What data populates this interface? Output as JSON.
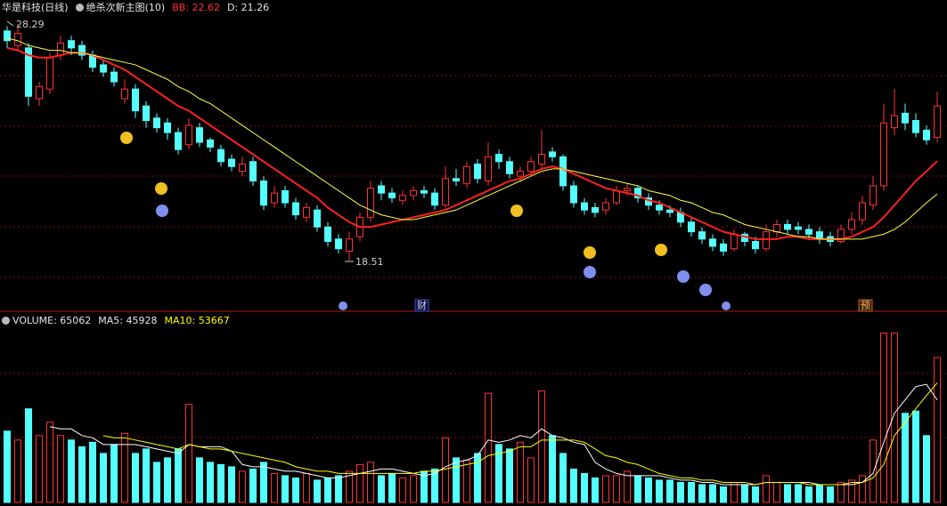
{
  "chart_data": [
    {
      "type": "candlestick",
      "title": "华是科技(日线)",
      "subtitle": "绝杀次新主图(10)",
      "up_color": "#ff3232",
      "down_color": "#54ffff",
      "ylim": [
        16.6,
        29.28
      ],
      "annotations": [
        "财",
        "预"
      ],
      "open": [
        28.0,
        27.4,
        27.3,
        25.2,
        25.6,
        27.0,
        27.6,
        27.4,
        27.0,
        26.6,
        26.3,
        25.2,
        25.6,
        24.9,
        24.4,
        24.2,
        23.8,
        23.3,
        24.0,
        23.5,
        23.1,
        22.7,
        22.2,
        22.6,
        21.8,
        20.9,
        21.4,
        20.9,
        20.3,
        20.6,
        19.9,
        19.4,
        18.9,
        19.5,
        20.3,
        21.6,
        21.3,
        21.0,
        21.2,
        21.4,
        21.3,
        20.8,
        21.9,
        21.7,
        22.5,
        21.8,
        22.9,
        22.6,
        22.0,
        22.2,
        22.5,
        23.0,
        22.8,
        21.6,
        20.9,
        20.7,
        20.6,
        20.9,
        21.4,
        21.5,
        21.1,
        20.8,
        20.6,
        20.5,
        20.1,
        19.7,
        19.4,
        19.2,
        19.0,
        19.6,
        19.3,
        19.0,
        19.7,
        20.0,
        19.9,
        19.8,
        19.7,
        19.5,
        19.3,
        19.8,
        20.2,
        20.8,
        21.6,
        24.0,
        24.6,
        24.3,
        23.9,
        23.6
      ],
      "high": [
        28.2,
        28.29,
        27.5,
        25.9,
        27.1,
        27.8,
        27.8,
        27.6,
        27.2,
        26.8,
        26.5,
        26.0,
        25.8,
        25.1,
        24.6,
        24.4,
        24.0,
        24.4,
        24.2,
        23.6,
        23.3,
        22.9,
        22.8,
        22.8,
        22.0,
        21.6,
        21.6,
        21.1,
        20.9,
        20.8,
        20.1,
        19.6,
        19.7,
        20.5,
        21.8,
        21.8,
        21.5,
        21.4,
        21.6,
        21.6,
        21.5,
        22.4,
        22.3,
        22.6,
        22.7,
        23.4,
        23.1,
        22.8,
        22.4,
        22.8,
        23.9,
        23.2,
        22.9,
        21.8,
        21.1,
        20.9,
        21.1,
        21.6,
        21.7,
        21.6,
        21.3,
        21.0,
        20.8,
        20.7,
        20.3,
        19.9,
        19.6,
        19.4,
        19.8,
        19.7,
        19.5,
        20.0,
        20.2,
        20.2,
        20.1,
        20.0,
        19.9,
        19.7,
        20.0,
        20.5,
        21.2,
        22.0,
        25.0,
        25.6,
        25.0,
        24.6,
        24.1,
        25.5
      ],
      "low": [
        27.3,
        27.2,
        24.9,
        24.9,
        25.4,
        26.8,
        27.0,
        26.8,
        26.3,
        26.1,
        25.7,
        25.0,
        24.4,
        24.0,
        23.8,
        23.5,
        22.9,
        23.1,
        23.2,
        23.0,
        22.4,
        22.2,
        22.0,
        21.6,
        20.6,
        20.7,
        20.7,
        20.2,
        20.1,
        19.7,
        19.1,
        18.8,
        18.51,
        19.3,
        20.1,
        21.0,
        20.9,
        20.8,
        21.0,
        21.1,
        20.6,
        20.6,
        21.6,
        21.5,
        21.7,
        21.6,
        22.3,
        21.9,
        21.8,
        22.0,
        22.3,
        22.6,
        21.4,
        20.7,
        20.4,
        20.3,
        20.4,
        20.8,
        21.2,
        20.9,
        20.6,
        20.4,
        20.3,
        19.9,
        19.5,
        19.2,
        18.9,
        18.7,
        18.9,
        19.1,
        18.8,
        18.9,
        19.5,
        19.6,
        19.6,
        19.4,
        19.2,
        19.1,
        19.2,
        19.6,
        20.0,
        20.6,
        21.4,
        23.7,
        23.9,
        23.6,
        23.3,
        23.4
      ],
      "close": [
        27.6,
        27.9,
        25.3,
        25.7,
        26.9,
        27.5,
        27.3,
        27.0,
        26.5,
        26.3,
        25.9,
        25.6,
        24.7,
        24.3,
        24.0,
        23.8,
        23.1,
        24.1,
        23.4,
        23.2,
        22.6,
        22.4,
        22.5,
        21.8,
        20.8,
        21.3,
        20.9,
        20.4,
        20.7,
        19.9,
        19.3,
        19.0,
        19.4,
        20.3,
        21.5,
        21.3,
        21.1,
        21.2,
        21.4,
        21.3,
        20.8,
        21.9,
        21.8,
        22.4,
        21.9,
        22.8,
        22.6,
        22.1,
        22.2,
        22.6,
        22.9,
        22.8,
        21.6,
        20.9,
        20.6,
        20.5,
        20.9,
        21.4,
        21.5,
        21.1,
        20.8,
        20.6,
        20.5,
        20.1,
        19.7,
        19.4,
        19.1,
        18.9,
        19.6,
        19.3,
        19.0,
        19.7,
        20.0,
        19.8,
        19.8,
        19.6,
        19.4,
        19.3,
        19.8,
        20.2,
        20.9,
        21.6,
        24.2,
        24.5,
        24.2,
        23.8,
        23.5,
        24.9
      ],
      "series": [
        {
          "name": "BB",
          "color": "#ff2020",
          "values": [
            27.3,
            27.2,
            27.0,
            26.9,
            26.9,
            27.0,
            27.1,
            27.1,
            27.0,
            26.8,
            26.6,
            26.4,
            26.1,
            25.8,
            25.5,
            25.2,
            24.9,
            24.7,
            24.4,
            24.1,
            23.8,
            23.5,
            23.2,
            22.9,
            22.6,
            22.3,
            22.0,
            21.7,
            21.4,
            21.1,
            20.7,
            20.4,
            20.1,
            19.9,
            19.9,
            20.0,
            20.1,
            20.2,
            20.3,
            20.4,
            20.5,
            20.6,
            20.8,
            21.0,
            21.2,
            21.4,
            21.6,
            21.8,
            21.9,
            22.1,
            22.3,
            22.4,
            22.3,
            22.1,
            21.9,
            21.7,
            21.5,
            21.4,
            21.3,
            21.2,
            21.0,
            20.9,
            20.7,
            20.5,
            20.3,
            20.1,
            19.9,
            19.7,
            19.6,
            19.5,
            19.4,
            19.4,
            19.4,
            19.5,
            19.5,
            19.4,
            19.4,
            19.4,
            19.4,
            19.5,
            19.7,
            19.9,
            20.3,
            20.8,
            21.3,
            21.8,
            22.2,
            22.62
          ]
        },
        {
          "name": "D",
          "color": "#ffff40",
          "values": [
            27.7,
            27.6,
            27.4,
            27.3,
            27.2,
            27.2,
            27.1,
            27.1,
            27.0,
            26.9,
            26.8,
            26.7,
            26.6,
            26.4,
            26.2,
            26.0,
            25.7,
            25.5,
            25.2,
            25.0,
            24.7,
            24.4,
            24.1,
            23.8,
            23.5,
            23.2,
            22.9,
            22.6,
            22.3,
            22.0,
            21.7,
            21.4,
            21.1,
            20.8,
            20.6,
            20.4,
            20.3,
            20.2,
            20.2,
            20.3,
            20.4,
            20.5,
            20.6,
            20.8,
            21.0,
            21.2,
            21.4,
            21.6,
            21.8,
            22.0,
            22.2,
            22.3,
            22.3,
            22.2,
            22.1,
            22.0,
            21.9,
            21.8,
            21.7,
            21.6,
            21.4,
            21.3,
            21.2,
            21.0,
            20.9,
            20.7,
            20.5,
            20.4,
            20.2,
            20.0,
            19.9,
            19.8,
            19.7,
            19.6,
            19.5,
            19.5,
            19.4,
            19.4,
            19.4,
            19.4,
            19.4,
            19.5,
            19.6,
            19.8,
            20.1,
            20.5,
            20.9,
            21.26
          ]
        }
      ]
    },
    {
      "type": "bar",
      "ylim": [
        0,
        78600
      ],
      "series": [
        {
          "name": "VOLUME",
          "values": [
            32000,
            28000,
            42000,
            30000,
            36000,
            30000,
            28000,
            25000,
            27000,
            22000,
            26000,
            31000,
            22000,
            24000,
            18000,
            20000,
            24000,
            44000,
            20000,
            18000,
            17000,
            16000,
            14000,
            15000,
            18000,
            13000,
            12000,
            11000,
            13000,
            10000,
            11000,
            12000,
            14000,
            17000,
            18000,
            12000,
            13000,
            11000,
            12000,
            14000,
            15000,
            29000,
            20000,
            19000,
            22000,
            49000,
            26000,
            24000,
            27000,
            20000,
            50000,
            30000,
            22000,
            15000,
            13000,
            11000,
            12000,
            12000,
            14000,
            12000,
            11000,
            10000,
            10000,
            9000,
            9000,
            8000,
            8000,
            7000,
            9000,
            8000,
            7000,
            12000,
            9000,
            8000,
            8000,
            7000,
            8000,
            7000,
            9000,
            10000,
            12000,
            28000,
            76000,
            76000,
            40000,
            41000,
            30000,
            65062
          ]
        },
        {
          "name": "MA5",
          "color": "#ffffff",
          "values": [
            null,
            null,
            null,
            null,
            34000,
            33000,
            33000,
            30000,
            29000,
            26000,
            26000,
            26000,
            26000,
            25000,
            24000,
            23000,
            22000,
            26000,
            25000,
            25000,
            25000,
            23000,
            17000,
            16000,
            16000,
            15000,
            14000,
            14000,
            13000,
            12000,
            11000,
            11000,
            12000,
            13000,
            14000,
            15000,
            15000,
            14000,
            13000,
            12000,
            13000,
            16000,
            18000,
            19000,
            21000,
            28000,
            27000,
            28000,
            30000,
            29000,
            33000,
            30000,
            29000,
            27000,
            26000,
            18000,
            15000,
            13000,
            12000,
            12000,
            12000,
            12000,
            11000,
            10000,
            10000,
            9000,
            9000,
            8000,
            8000,
            8000,
            8000,
            9000,
            9000,
            9000,
            9000,
            9000,
            8000,
            8000,
            8000,
            8000,
            9000,
            13000,
            27000,
            40000,
            46000,
            52000,
            53000,
            45928
          ]
        },
        {
          "name": "MA10",
          "color": "#ffff00",
          "values": [
            null,
            null,
            null,
            null,
            null,
            null,
            null,
            null,
            null,
            30000,
            29000,
            29000,
            28000,
            27000,
            26000,
            25000,
            24000,
            26000,
            25000,
            24000,
            24000,
            23000,
            22000,
            21000,
            20000,
            19000,
            18000,
            16000,
            15000,
            14000,
            14000,
            13000,
            13000,
            13000,
            13000,
            13000,
            13000,
            13000,
            13000,
            14000,
            14000,
            15000,
            16000,
            17000,
            18000,
            21000,
            22000,
            23000,
            25000,
            25000,
            28000,
            28000,
            28000,
            28000,
            27000,
            24000,
            21000,
            20000,
            18000,
            17000,
            15000,
            13000,
            12000,
            11000,
            11000,
            10000,
            10000,
            9000,
            9000,
            9000,
            8000,
            9000,
            9000,
            9000,
            9000,
            8000,
            8000,
            8000,
            8000,
            9000,
            9000,
            11000,
            17000,
            30000,
            36000,
            42000,
            48000,
            53667
          ]
        }
      ]
    }
  ]
}
